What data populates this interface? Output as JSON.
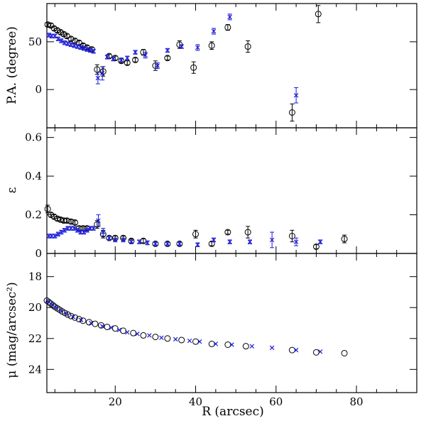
{
  "chart_data": {
    "type": "scatter",
    "shared_x": {
      "label": "R (arcsec)",
      "range": [
        3,
        95
      ],
      "ticks": [
        20,
        40,
        60,
        80
      ],
      "tick_labels": [
        "20",
        "40",
        "60",
        "80"
      ]
    },
    "colors": {
      "circle_series": "#000000",
      "cross_series": "#1a1ad8"
    },
    "panels": [
      {
        "id": "pa",
        "ylabel": "P.A. (degree)",
        "ylim": [
          -40,
          90
        ],
        "ticks": [
          0,
          50
        ],
        "tick_labels": [
          "0",
          "50"
        ],
        "series": [
          {
            "name": "circles",
            "marker": "circle",
            "points": [
              [
                3.2,
                68,
                2
              ],
              [
                4.0,
                67,
                2
              ],
              [
                4.8,
                64,
                2
              ],
              [
                5.6,
                62,
                2
              ],
              [
                6.4,
                60,
                2
              ],
              [
                7.2,
                58,
                2
              ],
              [
                8.0,
                56,
                2
              ],
              [
                9.0,
                53,
                2
              ],
              [
                10.0,
                51,
                2
              ],
              [
                11.0,
                49,
                2
              ],
              [
                12.0,
                46,
                2
              ],
              [
                13.0,
                44,
                2
              ],
              [
                14.2,
                42,
                2
              ],
              [
                15.5,
                21,
                5
              ],
              [
                17.0,
                19,
                5
              ],
              [
                18.5,
                35,
                2
              ],
              [
                20.0,
                33,
                2
              ],
              [
                21.5,
                30,
                2
              ],
              [
                23.0,
                28,
                2
              ],
              [
                25.0,
                31,
                2
              ],
              [
                27.0,
                39,
                3
              ],
              [
                30.0,
                25,
                5
              ],
              [
                33.0,
                33,
                2
              ],
              [
                36.0,
                47,
                4
              ],
              [
                39.5,
                23,
                6
              ],
              [
                44.0,
                46,
                4
              ],
              [
                48.0,
                65,
                3
              ],
              [
                53.0,
                45,
                6
              ],
              [
                64.0,
                -24,
                9
              ],
              [
                70.5,
                79,
                9
              ]
            ]
          },
          {
            "name": "crosses",
            "marker": "cross",
            "points": [
              [
                3.5,
                57,
                2
              ],
              [
                4.2,
                56,
                2
              ],
              [
                5.0,
                56,
                2
              ],
              [
                5.8,
                53,
                2
              ],
              [
                6.6,
                51,
                2
              ],
              [
                7.4,
                49,
                2
              ],
              [
                8.2,
                48,
                2
              ],
              [
                9.0,
                47,
                2
              ],
              [
                9.8,
                46,
                2
              ],
              [
                10.6,
                45,
                2
              ],
              [
                11.4,
                44,
                2
              ],
              [
                12.2,
                43,
                2
              ],
              [
                13.0,
                42,
                2
              ],
              [
                13.8,
                41,
                2
              ],
              [
                14.6,
                40,
                2
              ],
              [
                15.7,
                12,
                6
              ],
              [
                16.8,
                17,
                7
              ],
              [
                18.0,
                34,
                2
              ],
              [
                19.5,
                32,
                2
              ],
              [
                21.5,
                31,
                2
              ],
              [
                23.0,
                33,
                2
              ],
              [
                25.0,
                39,
                2
              ],
              [
                27.5,
                36,
                3
              ],
              [
                30.5,
                25,
                3
              ],
              [
                33.0,
                41,
                2
              ],
              [
                36.5,
                45,
                2
              ],
              [
                40.5,
                44,
                3
              ],
              [
                44.5,
                61,
                3
              ],
              [
                48.5,
                76,
                3
              ],
              [
                65.0,
                -6,
                8
              ]
            ]
          }
        ]
      },
      {
        "id": "eps",
        "ylabel": "ε",
        "ylim": [
          0,
          0.65
        ],
        "ticks": [
          0,
          0.2,
          0.4,
          0.6
        ],
        "tick_labels": [
          "0",
          "0.2",
          "0.4",
          "0.6"
        ],
        "series": [
          {
            "name": "circles",
            "marker": "circle",
            "points": [
              [
                3.2,
                0.23,
                0.02
              ],
              [
                4.0,
                0.2,
                0.01
              ],
              [
                4.8,
                0.19,
                0.01
              ],
              [
                5.6,
                0.18,
                0.01
              ],
              [
                6.4,
                0.175,
                0.01
              ],
              [
                7.2,
                0.17,
                0.01
              ],
              [
                8.0,
                0.17,
                0.01
              ],
              [
                9.0,
                0.165,
                0.01
              ],
              [
                10.0,
                0.16,
                0.01
              ],
              [
                11.0,
                0.13,
                0.01
              ],
              [
                12.0,
                0.13,
                0.01
              ],
              [
                13.0,
                0.13,
                0.01
              ],
              [
                15.5,
                0.15,
                0.02
              ],
              [
                17.0,
                0.1,
                0.02
              ],
              [
                18.5,
                0.08,
                0.01
              ],
              [
                20.0,
                0.08,
                0.01
              ],
              [
                22.0,
                0.08,
                0.01
              ],
              [
                24.0,
                0.065,
                0.01
              ],
              [
                27.0,
                0.065,
                0.01
              ],
              [
                30.0,
                0.05,
                0.01
              ],
              [
                33.0,
                0.05,
                0.01
              ],
              [
                36.0,
                0.05,
                0.01
              ],
              [
                40.0,
                0.1,
                0.02
              ],
              [
                44.0,
                0.05,
                0.01
              ],
              [
                48.0,
                0.11,
                0.01
              ],
              [
                53.0,
                0.11,
                0.03
              ],
              [
                64.0,
                0.09,
                0.03
              ],
              [
                70.0,
                0.035,
                0.01
              ],
              [
                77.0,
                0.075,
                0.02
              ]
            ]
          },
          {
            "name": "crosses",
            "marker": "cross",
            "points": [
              [
                3.5,
                0.09,
                0.01
              ],
              [
                4.2,
                0.09,
                0.01
              ],
              [
                5.0,
                0.09,
                0.01
              ],
              [
                5.8,
                0.1,
                0.01
              ],
              [
                6.6,
                0.11,
                0.01
              ],
              [
                7.4,
                0.12,
                0.01
              ],
              [
                8.2,
                0.13,
                0.01
              ],
              [
                9.0,
                0.13,
                0.01
              ],
              [
                9.8,
                0.13,
                0.01
              ],
              [
                10.6,
                0.12,
                0.01
              ],
              [
                11.4,
                0.11,
                0.01
              ],
              [
                12.2,
                0.11,
                0.01
              ],
              [
                13.0,
                0.12,
                0.01
              ],
              [
                13.8,
                0.13,
                0.01
              ],
              [
                14.6,
                0.13,
                0.01
              ],
              [
                15.8,
                0.17,
                0.03
              ],
              [
                17.0,
                0.11,
                0.02
              ],
              [
                18.5,
                0.08,
                0.01
              ],
              [
                20.0,
                0.07,
                0.01
              ],
              [
                22.0,
                0.07,
                0.01
              ],
              [
                24.0,
                0.06,
                0.01
              ],
              [
                26.0,
                0.06,
                0.01
              ],
              [
                28.0,
                0.055,
                0.01
              ],
              [
                30.0,
                0.05,
                0.01
              ],
              [
                33.0,
                0.05,
                0.01
              ],
              [
                36.0,
                0.05,
                0.01
              ],
              [
                40.5,
                0.045,
                0.01
              ],
              [
                44.5,
                0.07,
                0.01
              ],
              [
                48.5,
                0.06,
                0.01
              ],
              [
                53.5,
                0.06,
                0.01
              ],
              [
                59.0,
                0.07,
                0.04
              ],
              [
                65.0,
                0.06,
                0.02
              ],
              [
                71.0,
                0.06,
                0.01
              ]
            ]
          }
        ]
      },
      {
        "id": "mu",
        "ylabel": "μ (mag/arcsec²)",
        "ylim": [
          25.5,
          16.5
        ],
        "ticks": [
          18,
          20,
          22,
          24
        ],
        "tick_labels": [
          "18",
          "20",
          "22",
          "24"
        ],
        "series": [
          {
            "name": "circles",
            "marker": "circle",
            "points": [
              [
                3.0,
                19.55,
                0
              ],
              [
                3.5,
                19.65,
                0
              ],
              [
                4.0,
                19.75,
                0
              ],
              [
                4.5,
                19.85,
                0
              ],
              [
                5.0,
                19.95,
                0
              ],
              [
                5.6,
                20.05,
                0
              ],
              [
                6.2,
                20.15,
                0
              ],
              [
                6.8,
                20.25,
                0
              ],
              [
                7.5,
                20.35,
                0
              ],
              [
                8.2,
                20.45,
                0
              ],
              [
                9.0,
                20.55,
                0
              ],
              [
                10.0,
                20.65,
                0
              ],
              [
                11.0,
                20.75,
                0
              ],
              [
                12.0,
                20.85,
                0
              ],
              [
                13.5,
                20.95,
                0
              ],
              [
                15.0,
                21.05,
                0
              ],
              [
                16.5,
                21.15,
                0
              ],
              [
                18.0,
                21.25,
                0
              ],
              [
                20.0,
                21.35,
                0
              ],
              [
                22.0,
                21.5,
                0
              ],
              [
                24.5,
                21.65,
                0
              ],
              [
                27.0,
                21.8,
                0
              ],
              [
                30.0,
                21.9,
                0
              ],
              [
                33.0,
                22.0,
                0
              ],
              [
                36.5,
                22.1,
                0
              ],
              [
                40.0,
                22.2,
                0
              ],
              [
                44.0,
                22.35,
                0
              ],
              [
                48.0,
                22.4,
                0
              ],
              [
                52.5,
                22.5,
                0
              ],
              [
                64.0,
                22.75,
                0
              ],
              [
                70.0,
                22.9,
                0
              ],
              [
                77.0,
                22.95,
                0
              ]
            ]
          },
          {
            "name": "crosses",
            "marker": "cross",
            "points": [
              [
                3.3,
                19.6,
                0
              ],
              [
                4.3,
                19.8,
                0
              ],
              [
                5.3,
                20.0,
                0
              ],
              [
                6.5,
                20.2,
                0
              ],
              [
                7.8,
                20.4,
                0
              ],
              [
                9.5,
                20.6,
                0
              ],
              [
                11.5,
                20.8,
                0
              ],
              [
                14.0,
                21.0,
                0
              ],
              [
                16.8,
                21.2,
                0
              ],
              [
                19.0,
                21.3,
                0
              ],
              [
                21.0,
                21.45,
                0
              ],
              [
                23.0,
                21.6,
                0
              ],
              [
                25.5,
                21.7,
                0
              ],
              [
                28.5,
                21.8,
                0
              ],
              [
                31.5,
                21.95,
                0
              ],
              [
                35.0,
                22.05,
                0
              ],
              [
                38.5,
                22.15,
                0
              ],
              [
                41.0,
                22.2,
                0
              ],
              [
                45.0,
                22.35,
                0
              ],
              [
                49.0,
                22.4,
                0
              ],
              [
                54.0,
                22.5,
                0
              ],
              [
                59.0,
                22.6,
                0
              ],
              [
                65.0,
                22.75,
                0
              ],
              [
                71.0,
                22.85,
                0
              ]
            ]
          }
        ]
      }
    ]
  }
}
